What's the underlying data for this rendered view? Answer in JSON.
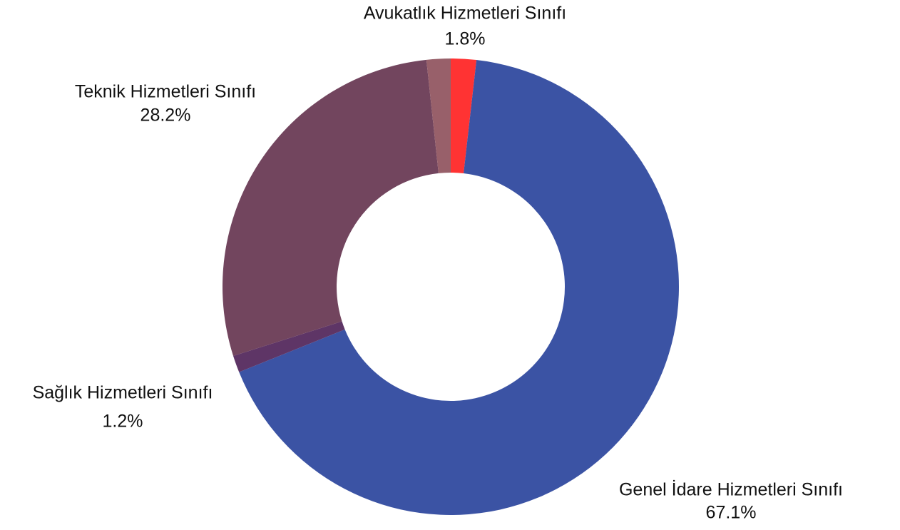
{
  "chart_data": {
    "type": "donut",
    "categories": [
      "Avukatlık Hizmetleri Sınıfı",
      "Genel İdare Hizmetleri Sınıfı",
      "Sağlık Hizmetleri Sınıfı",
      "Teknik Hizmetleri Sınıfı",
      null
    ],
    "values": [
      1.8,
      67.1,
      1.2,
      28.2,
      1.7
    ],
    "value_labels": [
      "1.8%",
      "67.1%",
      "1.2%",
      "28.2%",
      null
    ],
    "colors": [
      "#ff3333",
      "#3b53a4",
      "#5e3566",
      "#72455e",
      "#98606a"
    ]
  }
}
